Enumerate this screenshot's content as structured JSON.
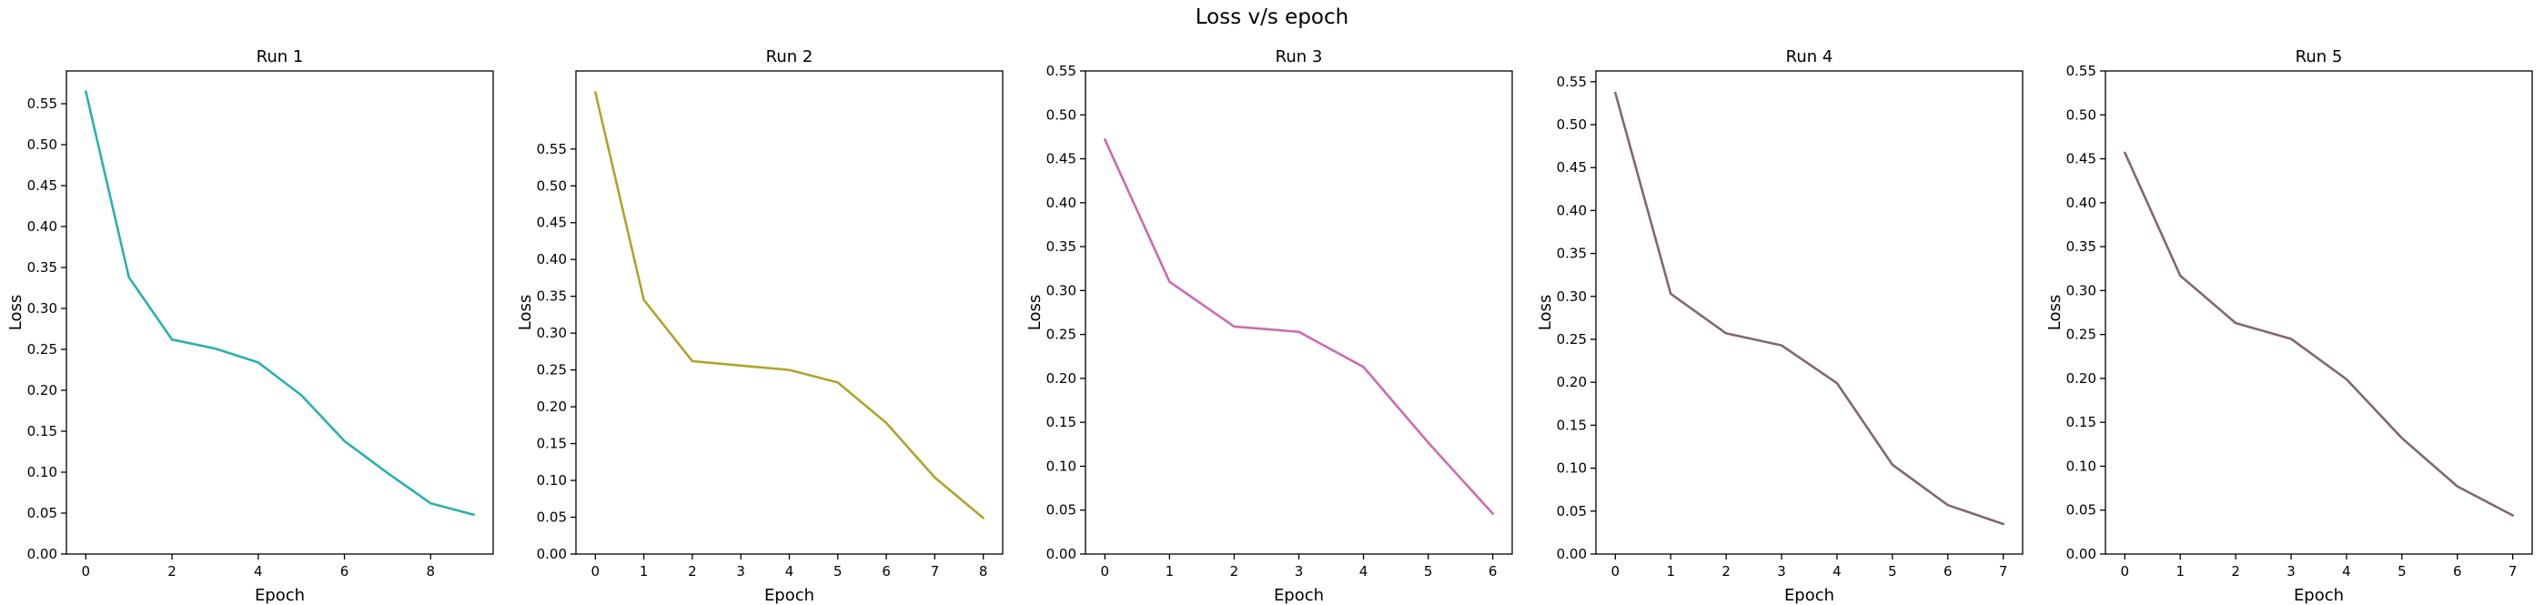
{
  "figure": {
    "title": "Loss v/s epoch"
  },
  "chart_data": [
    {
      "type": "line",
      "title": "Run 1",
      "xlabel": "Epoch",
      "ylabel": "Loss",
      "x": [
        0,
        1,
        2,
        3,
        4,
        5,
        6,
        7,
        8,
        9
      ],
      "values": [
        0.565,
        0.338,
        0.262,
        0.251,
        0.234,
        0.194,
        0.138,
        0.099,
        0.062,
        0.048
      ],
      "color": "#2ab0b0",
      "xticks": [
        0,
        2,
        4,
        6,
        8
      ],
      "yticks": [
        0.0,
        0.05,
        0.1,
        0.15,
        0.2,
        0.25,
        0.3,
        0.35,
        0.4,
        0.45,
        0.5,
        0.55
      ],
      "xlim": [
        -0.45,
        9.45
      ],
      "ylim": [
        0,
        0.59
      ],
      "grid": false
    },
    {
      "type": "line",
      "title": "Run 2",
      "xlabel": "Epoch",
      "ylabel": "Loss",
      "x": [
        0,
        1,
        2,
        3,
        4,
        5,
        6,
        7,
        8
      ],
      "values": [
        0.627,
        0.345,
        0.262,
        0.256,
        0.25,
        0.233,
        0.178,
        0.104,
        0.049
      ],
      "color": "#b0a32a",
      "xticks": [
        0,
        1,
        2,
        3,
        4,
        5,
        6,
        7,
        8
      ],
      "yticks": [
        0.0,
        0.05,
        0.1,
        0.15,
        0.2,
        0.25,
        0.3,
        0.35,
        0.4,
        0.45,
        0.5,
        0.55
      ],
      "xlim": [
        -0.4,
        8.4
      ],
      "ylim": [
        0,
        0.656
      ],
      "grid": false
    },
    {
      "type": "line",
      "title": "Run 3",
      "xlabel": "Epoch",
      "ylabel": "Loss",
      "x": [
        0,
        1,
        2,
        3,
        4,
        5,
        6
      ],
      "values": [
        0.472,
        0.31,
        0.259,
        0.253,
        0.213,
        0.127,
        0.046
      ],
      "color": "#cc6bb0",
      "xticks": [
        0,
        1,
        2,
        3,
        4,
        5,
        6
      ],
      "yticks": [
        0.0,
        0.05,
        0.1,
        0.15,
        0.2,
        0.25,
        0.3,
        0.35,
        0.4,
        0.45,
        0.5,
        0.55
      ],
      "xlim": [
        -0.3,
        6.3
      ],
      "ylim": [
        0,
        0.55
      ],
      "grid": false
    },
    {
      "type": "line",
      "title": "Run 4",
      "xlabel": "Epoch",
      "ylabel": "Loss",
      "x": [
        0,
        1,
        2,
        3,
        4,
        5,
        6,
        7
      ],
      "values": [
        0.537,
        0.303,
        0.257,
        0.243,
        0.199,
        0.104,
        0.057,
        0.035
      ],
      "color": "#80686e",
      "xticks": [
        0,
        1,
        2,
        3,
        4,
        5,
        6,
        7
      ],
      "yticks": [
        0.0,
        0.05,
        0.1,
        0.15,
        0.2,
        0.25,
        0.3,
        0.35,
        0.4,
        0.45,
        0.5,
        0.55
      ],
      "xlim": [
        -0.35,
        7.35
      ],
      "ylim": [
        0,
        0.5625
      ],
      "grid": false
    },
    {
      "type": "line",
      "title": "Run 5",
      "xlabel": "Epoch",
      "ylabel": "Loss",
      "x": [
        0,
        1,
        2,
        3,
        4,
        5,
        6,
        7
      ],
      "values": [
        0.457,
        0.317,
        0.263,
        0.245,
        0.199,
        0.132,
        0.077,
        0.044
      ],
      "color": "#80686e",
      "xticks": [
        0,
        1,
        2,
        3,
        4,
        5,
        6,
        7
      ],
      "yticks": [
        0.0,
        0.05,
        0.1,
        0.15,
        0.2,
        0.25,
        0.3,
        0.35,
        0.4,
        0.45,
        0.5,
        0.55
      ],
      "xlim": [
        -0.35,
        7.35
      ],
      "ylim": [
        0,
        0.55
      ],
      "grid": false
    }
  ]
}
